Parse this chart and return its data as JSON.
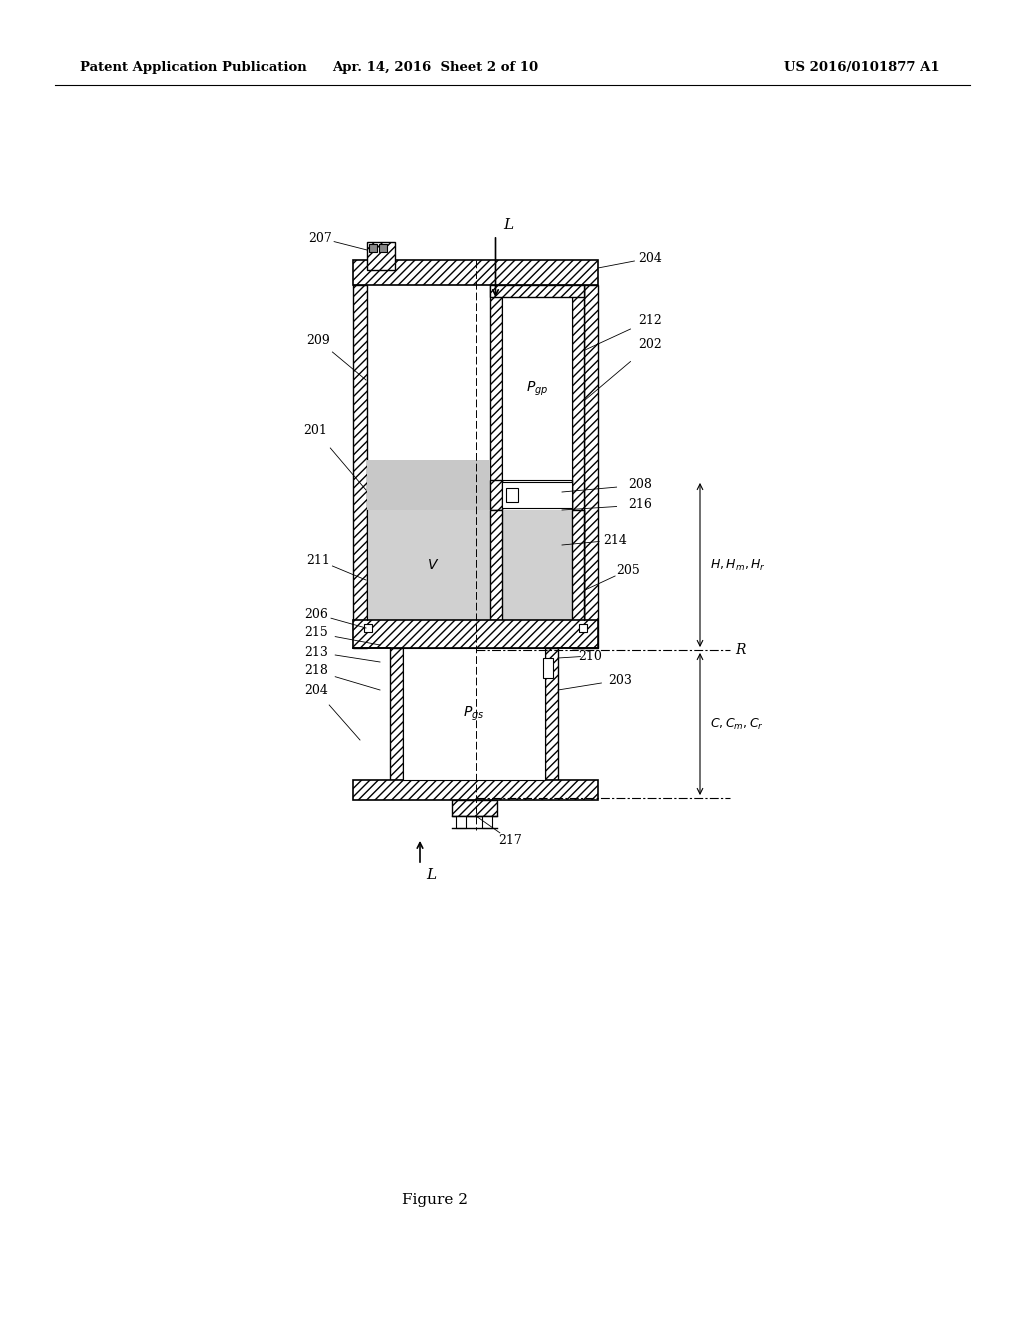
{
  "header_left": "Patent Application Publication",
  "header_center": "Apr. 14, 2016  Sheet 2 of 10",
  "header_right": "US 2016/0101877 A1",
  "figure_label": "Figure 2",
  "background_color": "#ffffff"
}
